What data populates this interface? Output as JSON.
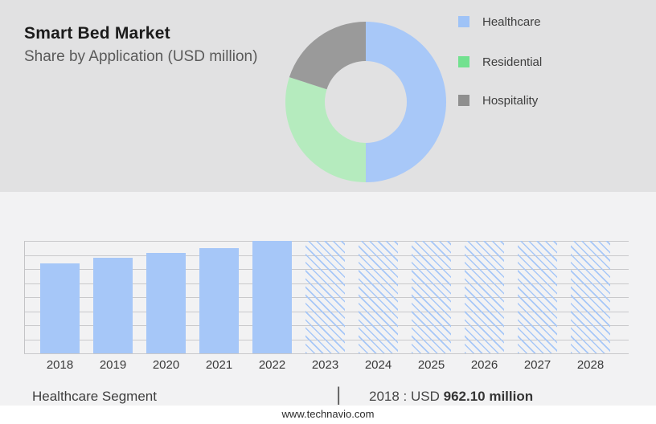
{
  "header": {
    "title": "Smart Bed Market",
    "subtitle": "Share by Application (USD million)"
  },
  "chart_data": [
    {
      "type": "pie",
      "subtype": "donut",
      "title": "Share by Application (USD million)",
      "labels": [
        "Healthcare",
        "Residential",
        "Hospitality"
      ],
      "values_pct": [
        50,
        30,
        20
      ],
      "colors": [
        "#A8C8F8",
        "#B5EBBE",
        "#9A9A9A"
      ],
      "legend_colors": [
        "#9FC3F7",
        "#72E18F",
        "#8F8F8F"
      ],
      "legend_position": "right",
      "start_angle_deg": 0,
      "direction": "clockwise",
      "inner_radius_ratio": 0.51
    },
    {
      "type": "bar",
      "title": "Healthcare Segment",
      "categories": [
        "2018",
        "2019",
        "2020",
        "2021",
        "2022",
        "2023",
        "2024",
        "2025",
        "2026",
        "2027",
        "2028"
      ],
      "values_usd_million": [
        962.1,
        1022,
        1074,
        1125,
        1203,
        null,
        null,
        null,
        null,
        null,
        null
      ],
      "values_estimated_note": "Only the 2018 value (962.10) is labeled; 2019-2022 estimated from bar heights; 2023-2028 are unlabeled hatched forecast bars drawn at full height",
      "relative_heights": [
        0.8,
        0.85,
        0.893,
        0.936,
        1.0,
        1.0,
        1.0,
        1.0,
        1.0,
        1.0,
        1.0
      ],
      "solid_bar_count": 5,
      "bar_color": "#A6C7F8",
      "grid": true,
      "gridline_count": 9,
      "y_axis_labels": false,
      "xlabel": "",
      "ylabel": ""
    }
  ],
  "footer": {
    "segment_label": "Healthcare Segment",
    "separator": "|",
    "stat_prefix": "2018 : USD",
    "stat_value": "962.10 million",
    "website": "www.technavio.com"
  }
}
